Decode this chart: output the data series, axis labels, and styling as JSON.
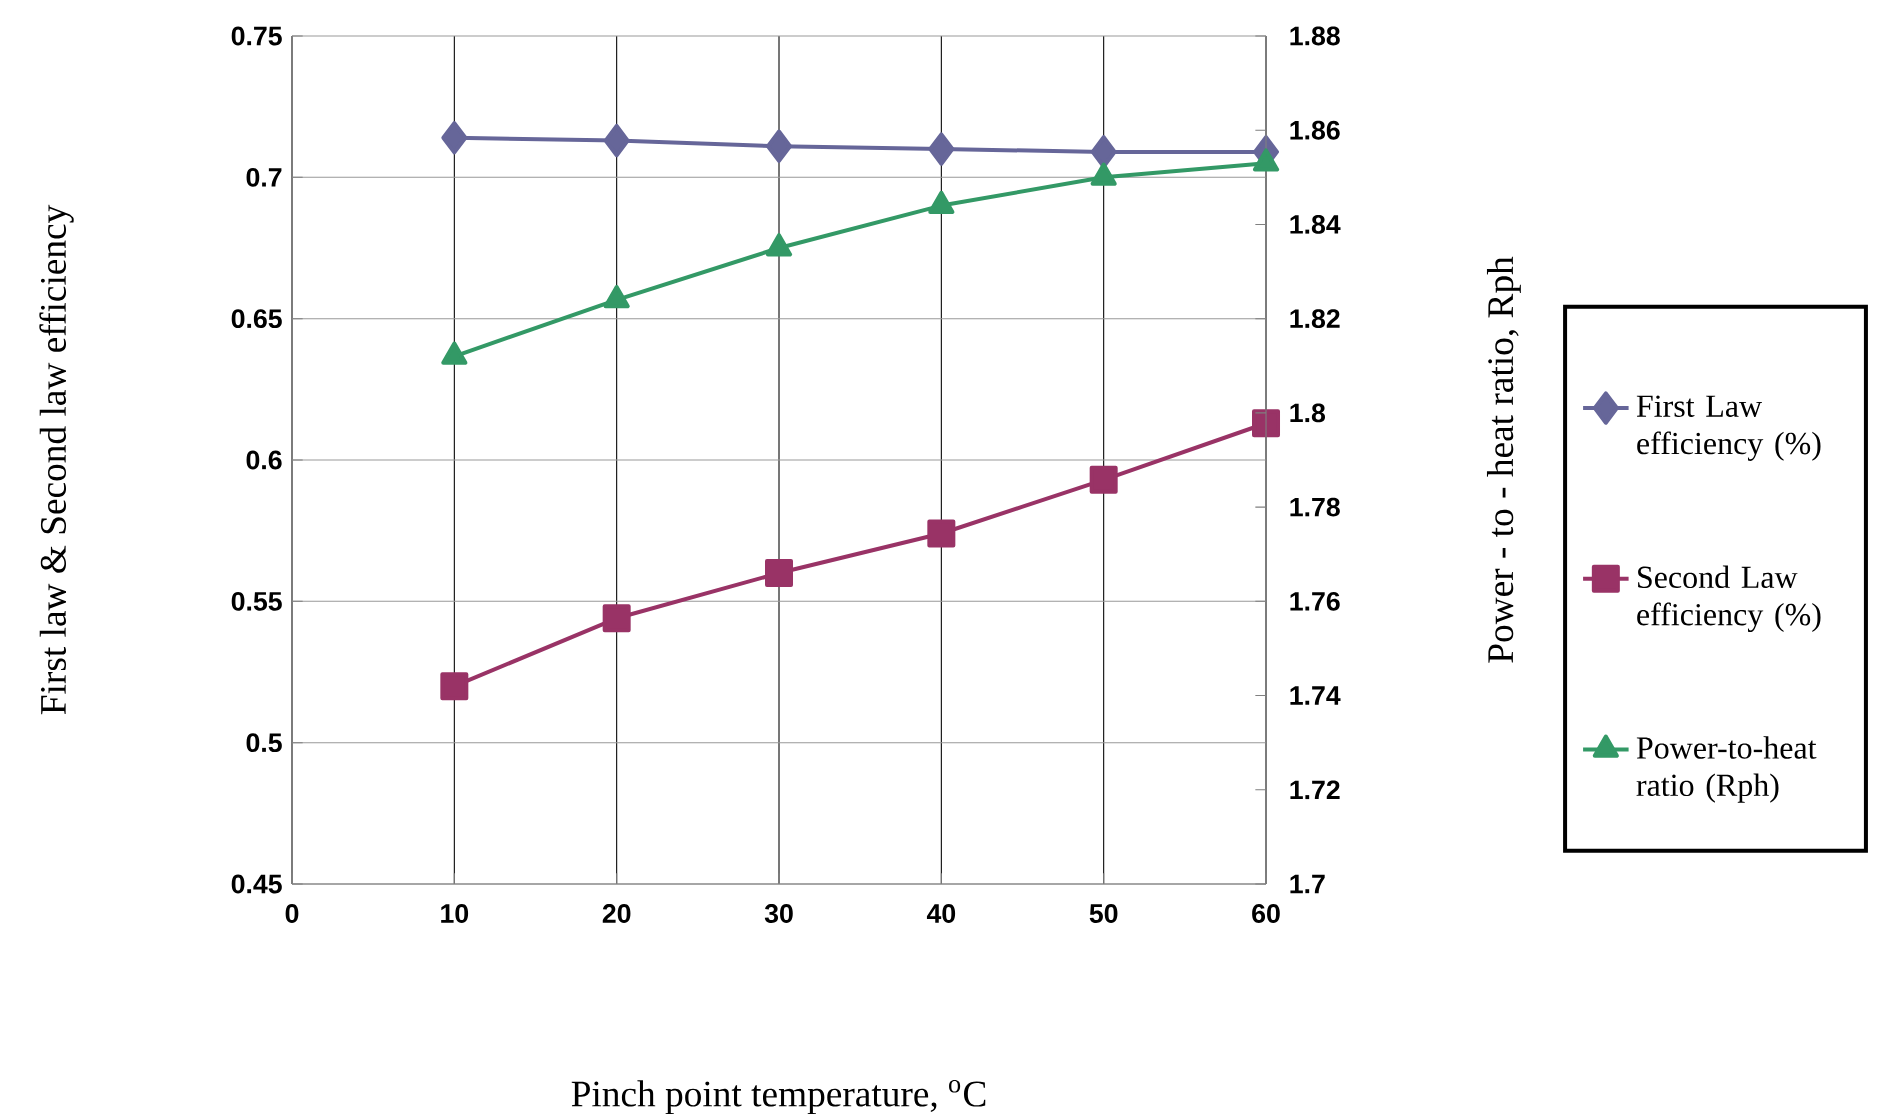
{
  "chart_data": {
    "type": "line",
    "xlabel": "Pinch point temperature, $^{o}$C",
    "ylabel": "First law & Second law efficiency",
    "y2label": "Power - to - heat ratio, Rph",
    "x": [
      10,
      20,
      30,
      40,
      50,
      60
    ],
    "xlim": [
      0,
      60
    ],
    "xticks": [
      0,
      10,
      20,
      30,
      40,
      50,
      60
    ],
    "ylim": [
      0.45,
      0.75
    ],
    "yticks": [
      0.45,
      0.5,
      0.55,
      0.6,
      0.65,
      0.7,
      0.75
    ],
    "y2lim": [
      1.7,
      1.88
    ],
    "y2ticks": [
      1.7,
      1.72,
      1.74,
      1.76,
      1.78,
      1.8,
      1.82,
      1.84,
      1.86,
      1.88
    ],
    "grid": true,
    "legend": "right",
    "series": [
      {
        "name": "First Law efficiency (%)",
        "color": "#666699",
        "marker": "diamond",
        "values": [
          0.714,
          0.713,
          0.711,
          0.71,
          0.709,
          0.709
        ]
      },
      {
        "name": "Second Law efficiency (%)",
        "color": "#993366",
        "marker": "square",
        "values": [
          0.52,
          0.544,
          0.56,
          0.574,
          0.593,
          0.613
        ]
      },
      {
        "name": "Power-to-heat ratio (Rph)",
        "color": "#339966",
        "marker": "triangle",
        "axis": "y2",
        "values": [
          1.812,
          1.824,
          1.835,
          1.844,
          1.85,
          1.853
        ]
      }
    ]
  }
}
